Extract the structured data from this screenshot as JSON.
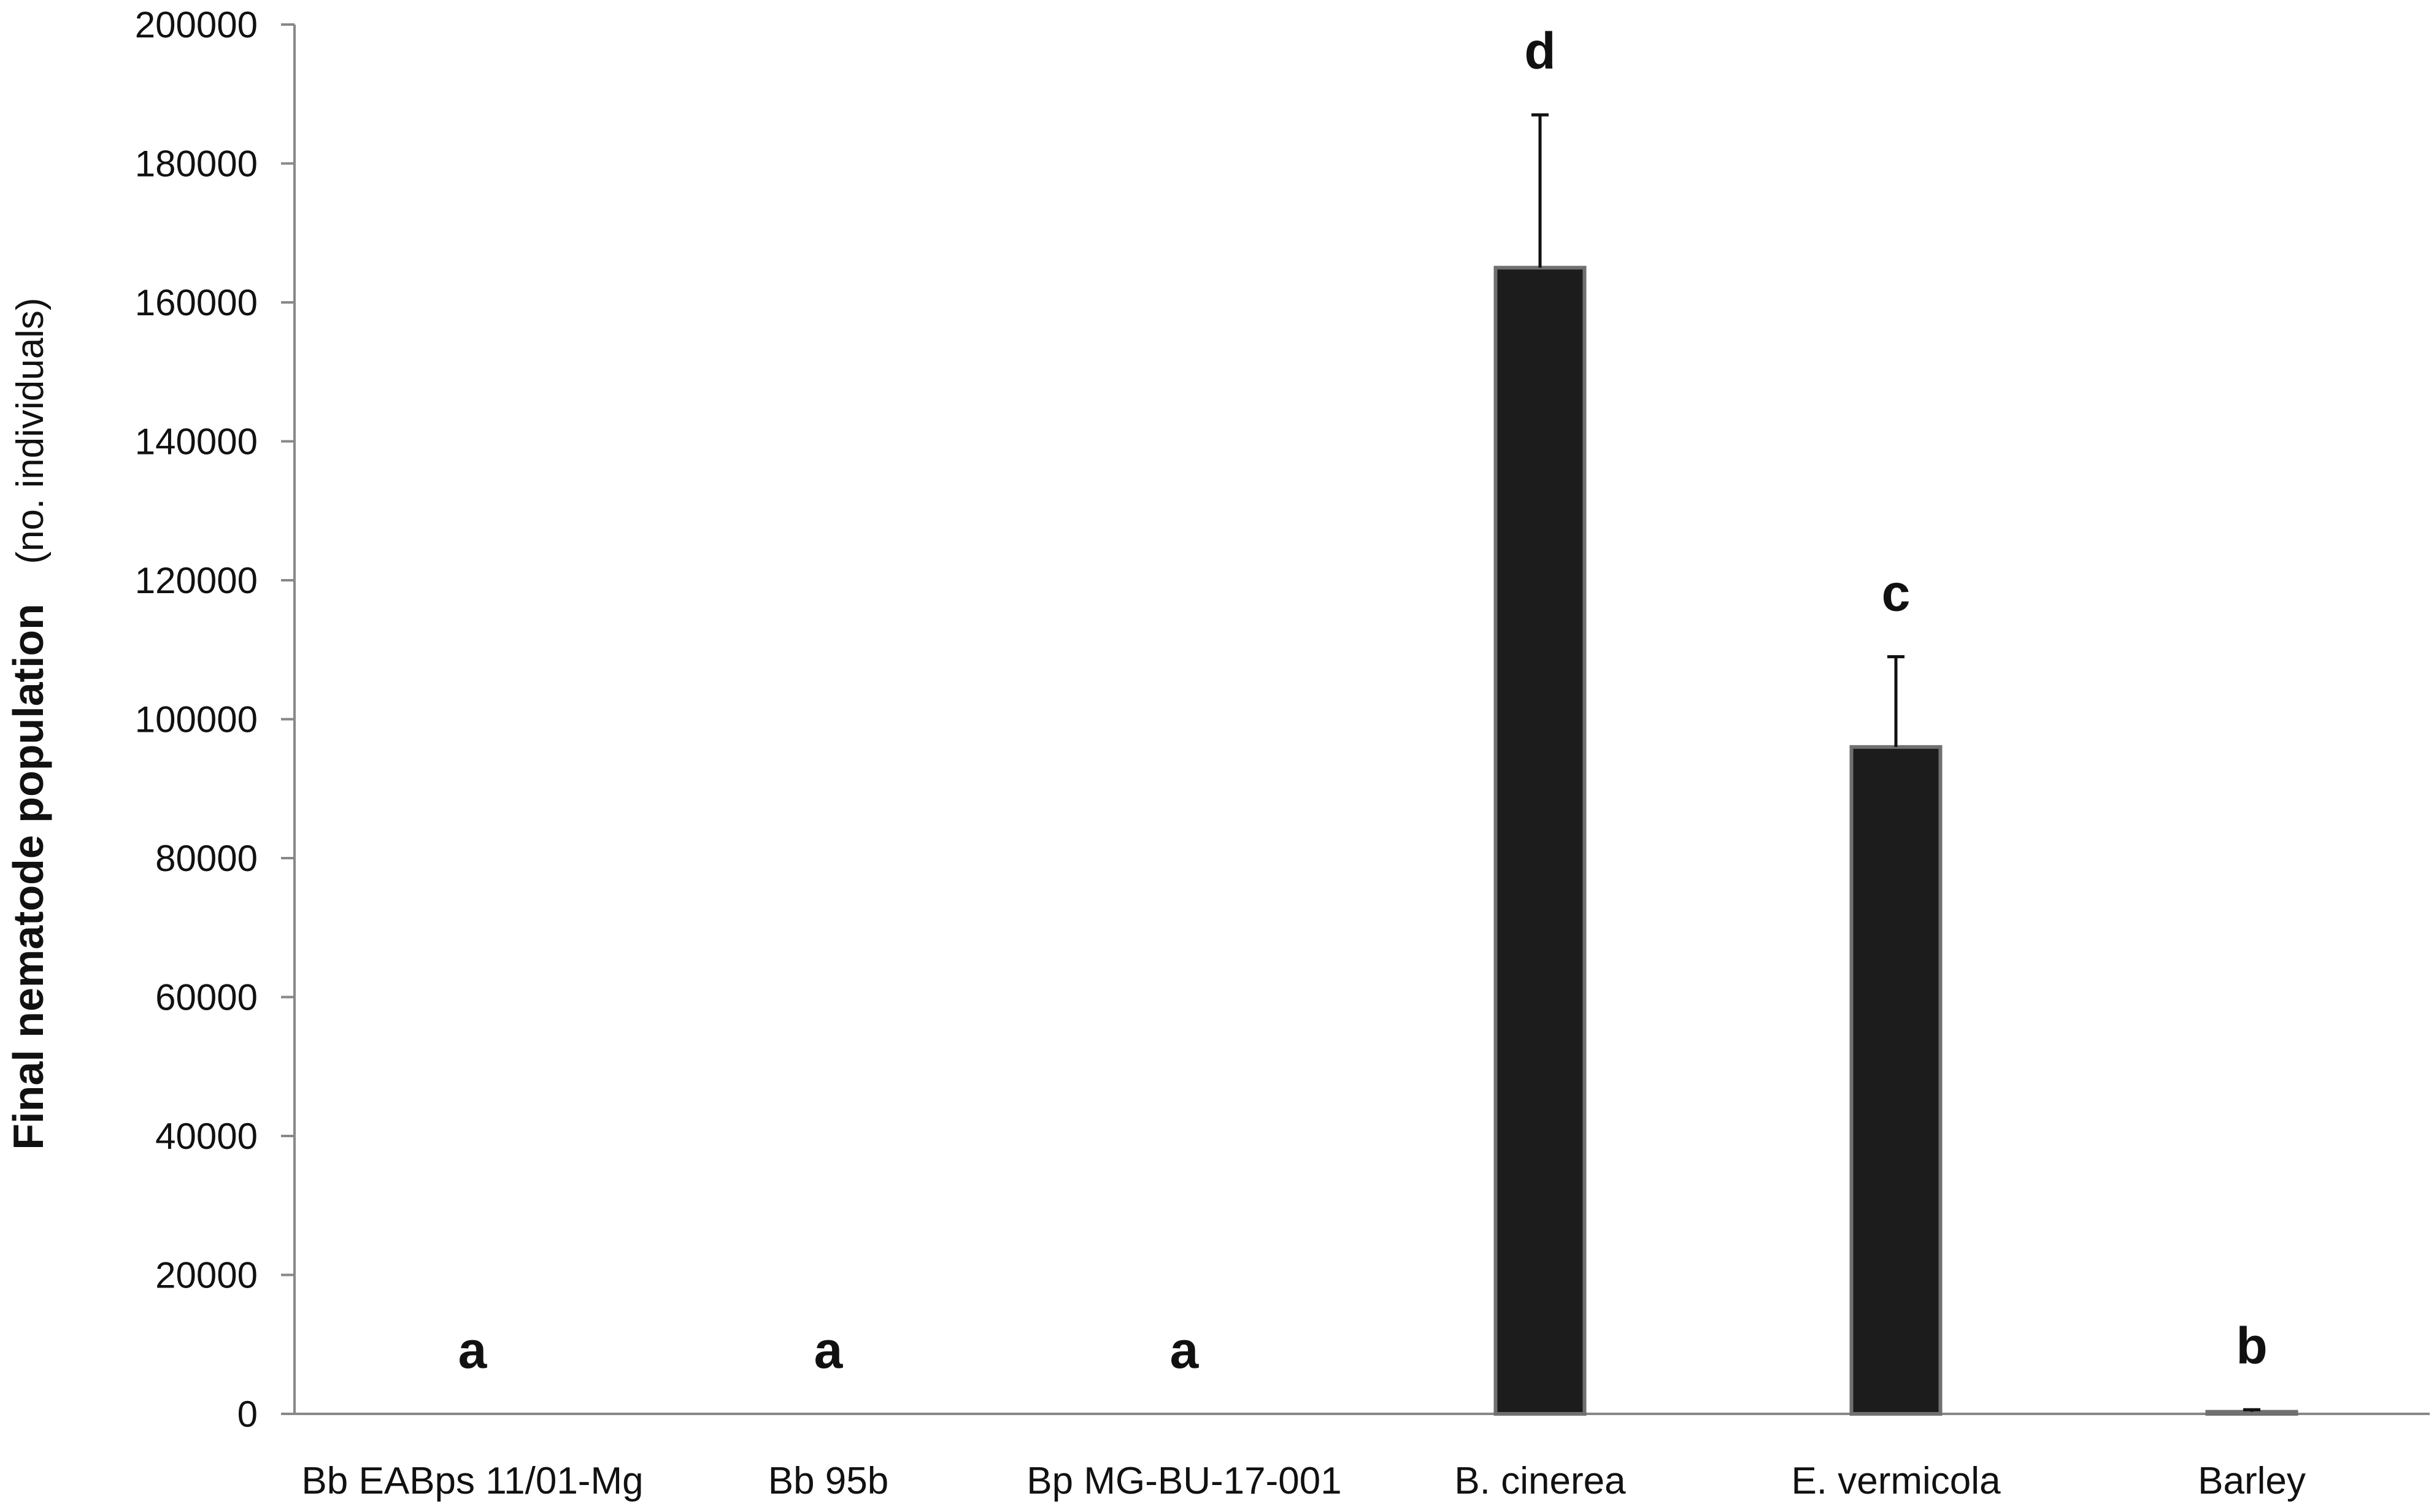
{
  "chart_data": {
    "type": "bar",
    "categories": [
      "Bb EABps 11/01-Mg",
      "Bb 95b",
      "Bp MG-BU-17-001",
      "B. cinerea",
      "E. vermicola",
      "Barley"
    ],
    "values": [
      0,
      0,
      0,
      165000,
      96000,
      300
    ],
    "error_upper": [
      0,
      0,
      0,
      187000,
      109000,
      600
    ],
    "letters": [
      "a",
      "a",
      "a",
      "d",
      "c",
      "b"
    ],
    "ylabel": "Final nematode population",
    "ylabel_unit": "(no. individuals)",
    "xlabel": "",
    "ylim": [
      0,
      200000
    ],
    "yticks": [
      "0",
      "20000",
      "40000",
      "60000",
      "80000",
      "100000",
      "120000",
      "140000",
      "160000",
      "180000",
      "200000"
    ],
    "grid": false,
    "bar_color": "#1c1c1c",
    "bar_edge_color": "#707070"
  }
}
